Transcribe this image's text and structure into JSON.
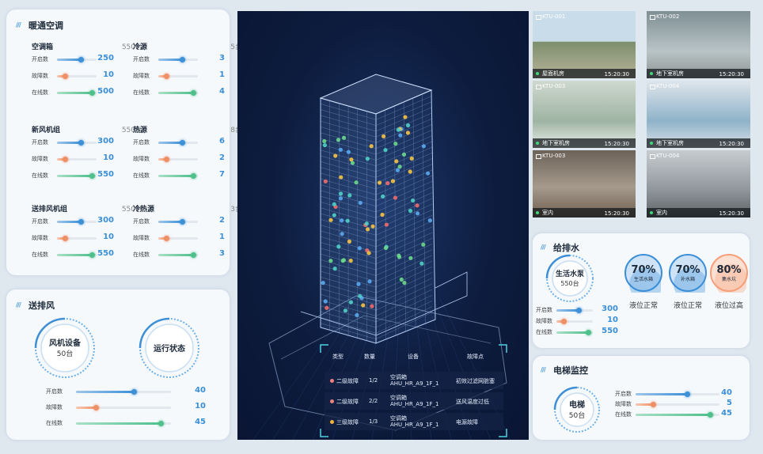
{
  "hvac": {
    "title": "暖通空调",
    "row_labels": [
      "开启数",
      "故障数",
      "在线数"
    ],
    "groups": [
      {
        "name": "空调箱",
        "total": "550台",
        "values": [
          250,
          10,
          500
        ]
      },
      {
        "name": "冷源",
        "total": "5台",
        "values": [
          3,
          1,
          4
        ]
      },
      {
        "name": "新风机组",
        "total": "550台",
        "values": [
          300,
          10,
          550
        ]
      },
      {
        "name": "热源",
        "total": "8台",
        "values": [
          6,
          2,
          7
        ]
      },
      {
        "name": "送排风机组",
        "total": "550台",
        "values": [
          300,
          10,
          550
        ]
      },
      {
        "name": "冷热源",
        "total": "3台",
        "values": [
          2,
          1,
          3
        ]
      }
    ]
  },
  "ventilation": {
    "title": "送排风",
    "gauge_name": "风机设备",
    "gauge_total": "50台",
    "status_label": "运行状态",
    "row_labels": [
      "开启数",
      "故障数",
      "在线数"
    ],
    "values": [
      40,
      10,
      45
    ]
  },
  "alarms": {
    "headers": [
      "类型",
      "数量",
      "设备",
      "故障点"
    ],
    "rows": [
      {
        "level": "二级故障",
        "count": "1/2",
        "device_type": "空调箱",
        "device_id": "AHU_HR_A9_1F_1",
        "fault": "初效过滤网脏塞"
      },
      {
        "level": "二级故障",
        "count": "2/2",
        "device_type": "空调箱",
        "device_id": "AHU_HR_A9_1F_1",
        "fault": "送风温度过低"
      },
      {
        "level": "三级故障",
        "count": "1/3",
        "device_type": "空调箱",
        "device_id": "AHU_HR_A9_1F_1",
        "fault": "电源故障"
      }
    ]
  },
  "cameras": [
    {
      "id": "KTU-001",
      "location": "屋面机房",
      "time": "15:20:30"
    },
    {
      "id": "KTU-002",
      "location": "地下室机房",
      "time": "15:20:30"
    },
    {
      "id": "KTU-003",
      "location": "地下室机房",
      "time": "15:20:30"
    },
    {
      "id": "KTU-004",
      "location": "地下室机房",
      "time": "15:20:30"
    },
    {
      "id": "KTU-003",
      "location": "室内",
      "time": "15:20:30"
    },
    {
      "id": "KTU-004",
      "location": "室内",
      "time": "15:20:30"
    }
  ],
  "water": {
    "title": "给排水",
    "gauge_name": "生活水泵",
    "gauge_total": "550台",
    "row_labels": [
      "开启数",
      "故障数",
      "在线数"
    ],
    "values": [
      300,
      10,
      550
    ],
    "tanks": [
      {
        "level": {
          "value": 70,
          "label": "70%"
        },
        "name": "生活水箱",
        "status": "液位正常"
      },
      {
        "level": {
          "value": 70,
          "label": "70%"
        },
        "name": "补水箱",
        "status": "液位正常"
      },
      {
        "level": {
          "value": 80,
          "label": "80%"
        },
        "name": "集水坑",
        "status": "液位过高"
      }
    ]
  },
  "elevator": {
    "title": "电梯监控",
    "gauge_name": "电梯",
    "gauge_total": "50台",
    "row_labels": [
      "开启数",
      "故障数",
      "在线数"
    ],
    "values": [
      40,
      5,
      45
    ]
  }
}
